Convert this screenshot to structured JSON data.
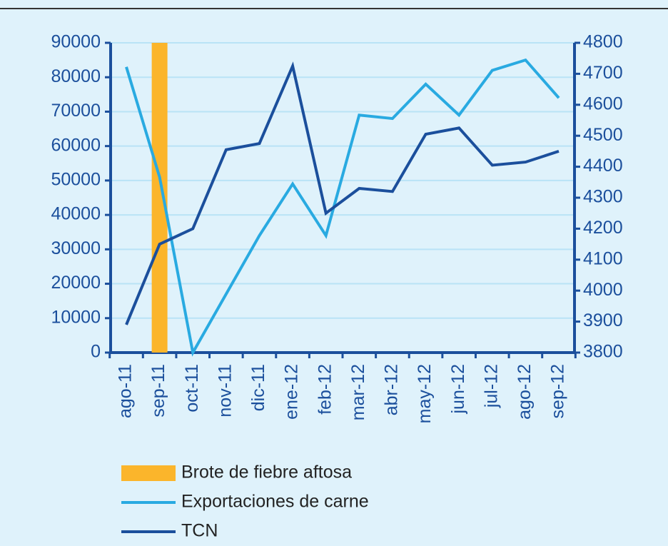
{
  "chart_data": {
    "type": "combo",
    "categories": [
      "ago-11",
      "sep-11",
      "oct-11",
      "nov-11",
      "dic-11",
      "ene-12",
      "feb-12",
      "mar-12",
      "abr-12",
      "may-12",
      "jun-12",
      "jul-12",
      "ago-12",
      "sep-12"
    ],
    "series": [
      {
        "name": "Brote de fiebre aftosa",
        "type": "bar",
        "color": "#fbb52b",
        "values": [
          null,
          90000,
          null,
          null,
          null,
          null,
          null,
          null,
          null,
          null,
          null,
          null,
          null,
          null
        ]
      },
      {
        "name": "Exportaciones de carne",
        "type": "line",
        "color": "#29aae1",
        "values": [
          83000,
          51000,
          0,
          17000,
          34000,
          49000,
          34000,
          69000,
          68000,
          78000,
          69000,
          82000,
          85000,
          74000
        ]
      },
      {
        "name": "TCN",
        "type": "line",
        "axis": "y2",
        "color": "#1b4f9c",
        "values": [
          3890,
          4150,
          4200,
          4455,
          4475,
          4725,
          4250,
          4330,
          4320,
          4505,
          4525,
          4405,
          4415,
          4450
        ]
      }
    ],
    "ylim": [
      0,
      90000
    ],
    "yticks": [
      0,
      10000,
      20000,
      30000,
      40000,
      50000,
      60000,
      70000,
      80000,
      90000
    ],
    "y2lim": [
      3800,
      4800
    ],
    "y2ticks": [
      3800,
      3900,
      4000,
      4100,
      4200,
      4300,
      4400,
      4500,
      4600,
      4700,
      4800
    ],
    "grid": true
  }
}
